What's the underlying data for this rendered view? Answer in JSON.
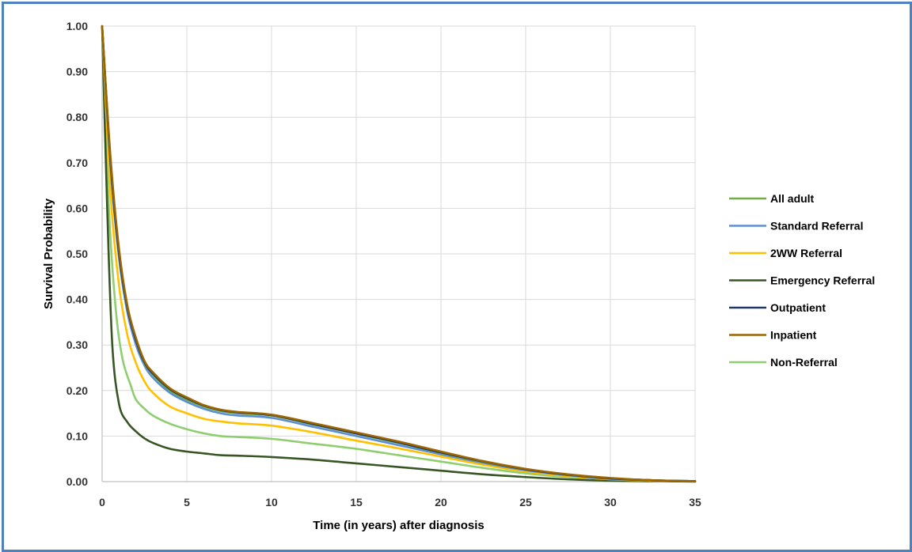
{
  "chart_data": {
    "type": "line",
    "title": "",
    "xlabel": "Time (in years) after diagnosis",
    "ylabel": "Survival Probability",
    "xlim": [
      0,
      35
    ],
    "ylim": [
      0,
      1
    ],
    "x_ticks": [
      "0",
      "5",
      "10",
      "15",
      "20",
      "25",
      "30",
      "35"
    ],
    "y_ticks": [
      "0.00",
      "0.10",
      "0.20",
      "0.30",
      "0.40",
      "0.50",
      "0.60",
      "0.70",
      "0.80",
      "0.90",
      "1.00"
    ],
    "grid": true,
    "legend_position": "right",
    "series": [
      {
        "name": "All adult",
        "color": "#70ad47",
        "points": [
          [
            0,
            1.0
          ],
          [
            0.5,
            0.7
          ],
          [
            1,
            0.5
          ],
          [
            1.5,
            0.38
          ],
          [
            2,
            0.31
          ],
          [
            2.5,
            0.26
          ],
          [
            3,
            0.235
          ],
          [
            4,
            0.2
          ],
          [
            5,
            0.18
          ],
          [
            6,
            0.165
          ],
          [
            7,
            0.155
          ],
          [
            8,
            0.15
          ],
          [
            10,
            0.145
          ],
          [
            12.5,
            0.125
          ],
          [
            15,
            0.105
          ],
          [
            17.5,
            0.085
          ],
          [
            20,
            0.063
          ],
          [
            22.5,
            0.043
          ],
          [
            25,
            0.027
          ],
          [
            27.5,
            0.015
          ],
          [
            30,
            0.007
          ],
          [
            32.5,
            0.003
          ],
          [
            35,
            0.001
          ]
        ]
      },
      {
        "name": "Standard Referral",
        "color": "#5b8ed6",
        "points": [
          [
            0,
            1.0
          ],
          [
            0.5,
            0.69
          ],
          [
            1,
            0.49
          ],
          [
            1.5,
            0.37
          ],
          [
            2,
            0.3
          ],
          [
            2.5,
            0.255
          ],
          [
            3,
            0.228
          ],
          [
            4,
            0.195
          ],
          [
            5,
            0.175
          ],
          [
            6,
            0.16
          ],
          [
            7,
            0.15
          ],
          [
            8,
            0.145
          ],
          [
            10,
            0.14
          ],
          [
            12.5,
            0.12
          ],
          [
            15,
            0.1
          ],
          [
            17.5,
            0.08
          ],
          [
            20,
            0.06
          ],
          [
            22.5,
            0.041
          ],
          [
            25,
            0.025
          ],
          [
            27.5,
            0.014
          ],
          [
            30,
            0.006
          ],
          [
            32.5,
            0.003
          ],
          [
            35,
            0.001
          ]
        ]
      },
      {
        "name": "2WW Referral",
        "color": "#ffc000",
        "points": [
          [
            0,
            1.0
          ],
          [
            0.5,
            0.63
          ],
          [
            1,
            0.43
          ],
          [
            1.5,
            0.32
          ],
          [
            2,
            0.26
          ],
          [
            2.5,
            0.22
          ],
          [
            3,
            0.195
          ],
          [
            4,
            0.165
          ],
          [
            5,
            0.15
          ],
          [
            6,
            0.138
          ],
          [
            7,
            0.132
          ],
          [
            8,
            0.128
          ],
          [
            10,
            0.123
          ],
          [
            12.5,
            0.108
          ],
          [
            15,
            0.09
          ],
          [
            17.5,
            0.073
          ],
          [
            20,
            0.055
          ],
          [
            22.5,
            0.037
          ],
          [
            25,
            0.022
          ],
          [
            27.5,
            0.012
          ],
          [
            30,
            0.005
          ],
          [
            32.5,
            0.002
          ],
          [
            35,
            0.001
          ]
        ]
      },
      {
        "name": "Emergency Referral",
        "color": "#375623",
        "points": [
          [
            0,
            1.0
          ],
          [
            0.3,
            0.6
          ],
          [
            0.6,
            0.3
          ],
          [
            1,
            0.17
          ],
          [
            1.5,
            0.13
          ],
          [
            2,
            0.11
          ],
          [
            2.5,
            0.095
          ],
          [
            3,
            0.085
          ],
          [
            4,
            0.072
          ],
          [
            5,
            0.066
          ],
          [
            6,
            0.062
          ],
          [
            7,
            0.058
          ],
          [
            8,
            0.057
          ],
          [
            10,
            0.054
          ],
          [
            12.5,
            0.048
          ],
          [
            15,
            0.04
          ],
          [
            17.5,
            0.032
          ],
          [
            20,
            0.024
          ],
          [
            22.5,
            0.016
          ],
          [
            25,
            0.01
          ],
          [
            27.5,
            0.005
          ],
          [
            30,
            0.002
          ],
          [
            32.5,
            0.001
          ],
          [
            35,
            0.0
          ]
        ]
      },
      {
        "name": "Outpatient",
        "color": "#203864",
        "points": [
          [
            0,
            1.0
          ],
          [
            0.5,
            0.7
          ],
          [
            1,
            0.5
          ],
          [
            1.5,
            0.38
          ],
          [
            2,
            0.31
          ],
          [
            2.5,
            0.262
          ],
          [
            3,
            0.237
          ],
          [
            4,
            0.203
          ],
          [
            5,
            0.183
          ],
          [
            6,
            0.167
          ],
          [
            7,
            0.157
          ],
          [
            8,
            0.152
          ],
          [
            10,
            0.146
          ],
          [
            12.5,
            0.126
          ],
          [
            15,
            0.106
          ],
          [
            17.5,
            0.086
          ],
          [
            20,
            0.064
          ],
          [
            22.5,
            0.044
          ],
          [
            25,
            0.027
          ],
          [
            27.5,
            0.015
          ],
          [
            30,
            0.007
          ],
          [
            32.5,
            0.003
          ],
          [
            35,
            0.001
          ]
        ]
      },
      {
        "name": "Inpatient",
        "color": "#9c6500",
        "points": [
          [
            0,
            1.0
          ],
          [
            0.5,
            0.71
          ],
          [
            1,
            0.51
          ],
          [
            1.5,
            0.385
          ],
          [
            2,
            0.315
          ],
          [
            2.5,
            0.265
          ],
          [
            3,
            0.24
          ],
          [
            4,
            0.205
          ],
          [
            5,
            0.185
          ],
          [
            6,
            0.168
          ],
          [
            7,
            0.158
          ],
          [
            8,
            0.153
          ],
          [
            10,
            0.147
          ],
          [
            12.5,
            0.128
          ],
          [
            15,
            0.108
          ],
          [
            17.5,
            0.088
          ],
          [
            20,
            0.066
          ],
          [
            22.5,
            0.045
          ],
          [
            25,
            0.028
          ],
          [
            27.5,
            0.016
          ],
          [
            30,
            0.008
          ],
          [
            32.5,
            0.003
          ],
          [
            35,
            0.001
          ]
        ]
      },
      {
        "name": "Non-Referral",
        "color": "#8fce6f",
        "points": [
          [
            0,
            1.0
          ],
          [
            0.4,
            0.6
          ],
          [
            0.8,
            0.38
          ],
          [
            1.2,
            0.27
          ],
          [
            1.7,
            0.21
          ],
          [
            2,
            0.18
          ],
          [
            2.5,
            0.16
          ],
          [
            3,
            0.145
          ],
          [
            4,
            0.127
          ],
          [
            5,
            0.115
          ],
          [
            6,
            0.106
          ],
          [
            7,
            0.1
          ],
          [
            8,
            0.098
          ],
          [
            10,
            0.094
          ],
          [
            12.5,
            0.083
          ],
          [
            15,
            0.072
          ],
          [
            17.5,
            0.058
          ],
          [
            20,
            0.044
          ],
          [
            22.5,
            0.03
          ],
          [
            25,
            0.018
          ],
          [
            27.5,
            0.01
          ],
          [
            30,
            0.004
          ],
          [
            32.5,
            0.002
          ],
          [
            35,
            0.001
          ]
        ]
      }
    ]
  }
}
